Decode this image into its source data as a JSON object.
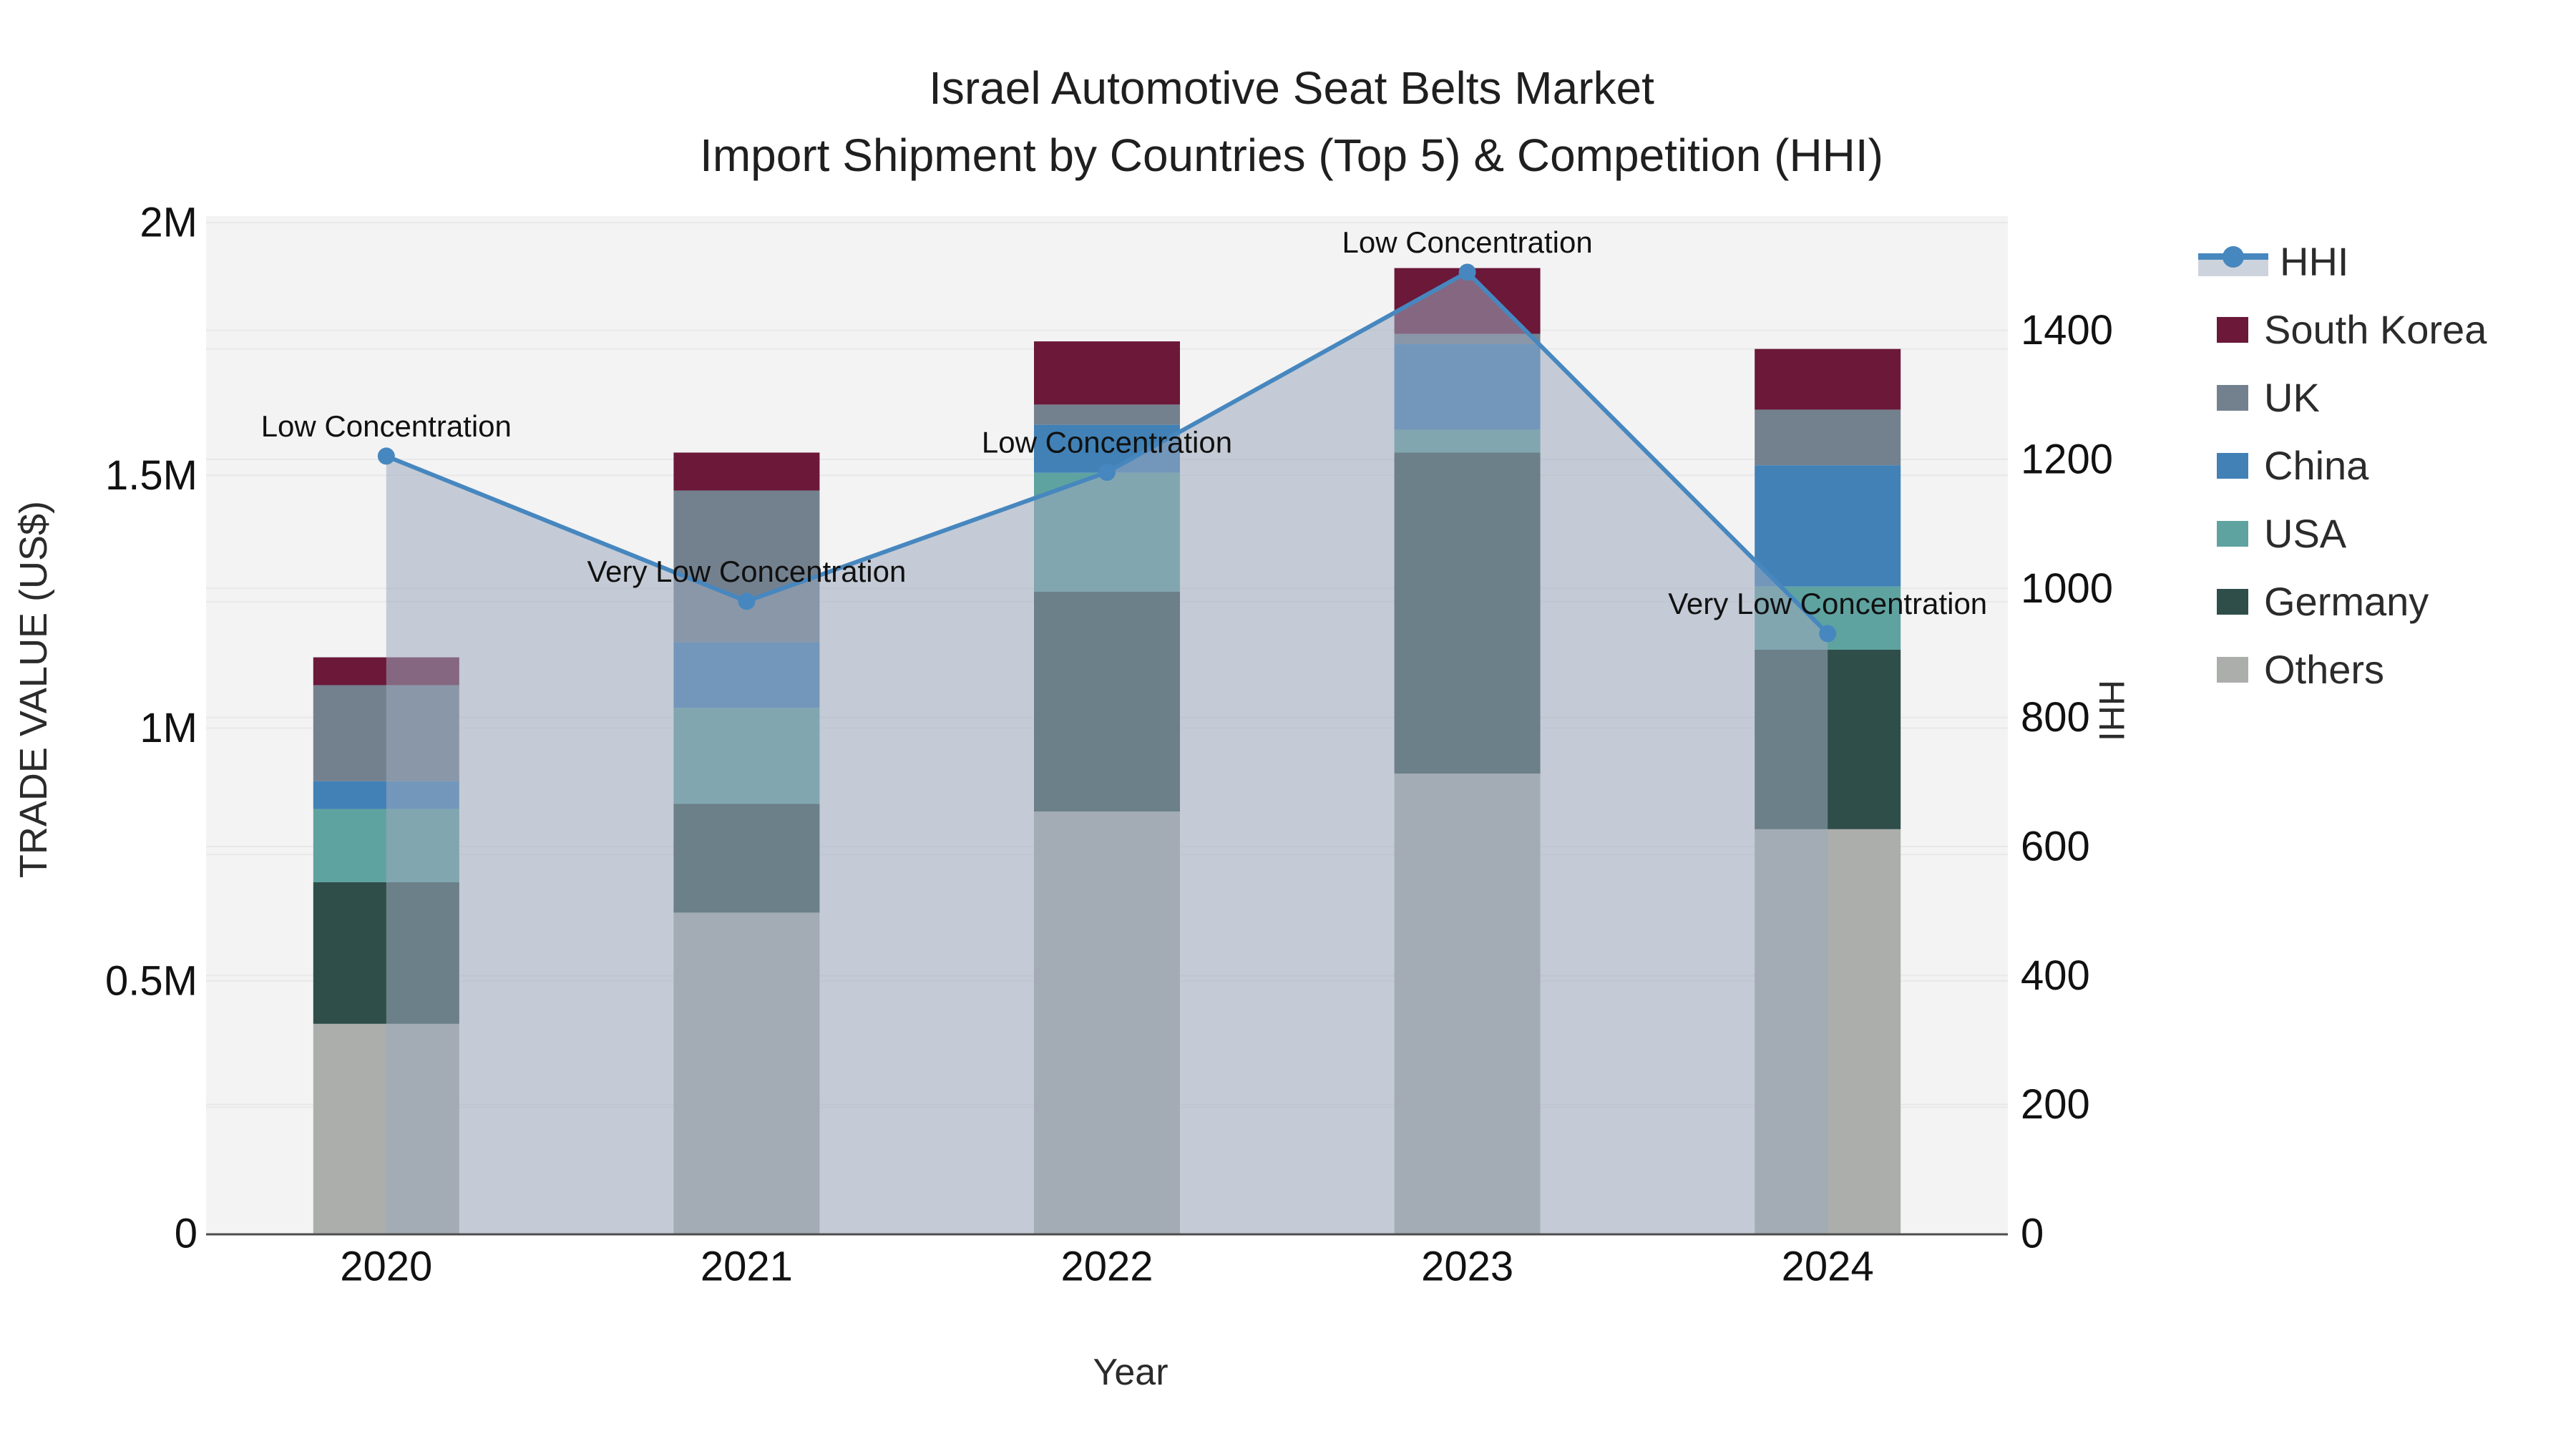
{
  "title": {
    "line1": "Israel Automotive Seat Belts Market",
    "line2": "Import Shipment by Countries (Top 5) & Competition (HHI)"
  },
  "axes": {
    "x": {
      "title": "Year",
      "tick_labels": [
        "2020",
        "2021",
        "2022",
        "2023",
        "2024"
      ]
    },
    "y_left": {
      "title": "TRADE VALUE (US$)",
      "tick_labels": [
        "0",
        "0.5M",
        "1M",
        "1.5M",
        "2M"
      ],
      "tick_values": [
        0,
        500000,
        1000000,
        1500000,
        2000000
      ],
      "range": [
        0,
        2012800
      ]
    },
    "y_right": {
      "title": "HHI",
      "tick_labels": [
        "0",
        "200",
        "400",
        "600",
        "800",
        "1000",
        "1200",
        "1400"
      ],
      "tick_values": [
        0,
        200,
        400,
        600,
        800,
        1000,
        1200,
        1400
      ],
      "range": [
        0,
        1577
      ]
    }
  },
  "legend": {
    "items": [
      {
        "id": "hhi",
        "label": "HHI",
        "type": "line",
        "color": "#4787BF"
      },
      {
        "id": "south-korea",
        "label": "South Korea",
        "type": "swatch",
        "color": "#6B1839"
      },
      {
        "id": "uk",
        "label": "UK",
        "type": "swatch",
        "color": "#73818F"
      },
      {
        "id": "china",
        "label": "China",
        "type": "swatch",
        "color": "#4181B6"
      },
      {
        "id": "usa",
        "label": "USA",
        "type": "swatch",
        "color": "#5FA3A0"
      },
      {
        "id": "germany",
        "label": "Germany",
        "type": "swatch",
        "color": "#2F4E49"
      },
      {
        "id": "others",
        "label": "Others",
        "type": "swatch",
        "color": "#ACAEAC"
      }
    ]
  },
  "chart_data": {
    "type": "bar",
    "stacked": true,
    "title": "Israel Automotive Seat Belts Market — Import Shipment by Countries (Top 5) & Competition (HHI)",
    "xlabel": "Year",
    "ylabel_left": "TRADE VALUE (US$)",
    "ylabel_right": "HHI",
    "categories": [
      "2020",
      "2021",
      "2022",
      "2023",
      "2024"
    ],
    "series": [
      {
        "name": "Others",
        "color": "#ACAEAC",
        "values": [
          415000,
          635000,
          835000,
          910000,
          800000
        ]
      },
      {
        "name": "Germany",
        "color": "#2F4E49",
        "values": [
          280000,
          215000,
          435000,
          635000,
          355000
        ]
      },
      {
        "name": "USA",
        "color": "#5FA3A0",
        "values": [
          145000,
          190000,
          235000,
          45000,
          125000
        ]
      },
      {
        "name": "China",
        "color": "#4181B6",
        "values": [
          55000,
          130000,
          95000,
          170000,
          240000
        ]
      },
      {
        "name": "UK",
        "color": "#73818F",
        "values": [
          190000,
          300000,
          40000,
          20000,
          110000
        ]
      },
      {
        "name": "South Korea",
        "color": "#6B1839",
        "values": [
          55000,
          75000,
          125000,
          130000,
          120000
        ]
      }
    ],
    "line_series": {
      "name": "HHI",
      "axis": "right",
      "color": "#4787BF",
      "fill_color": "rgba(157,169,189,0.55)",
      "values": [
        1205,
        980,
        1180,
        1490,
        930
      ],
      "annotations": [
        "Low Concentration",
        "Very Low Concentration",
        "Low Concentration",
        "Low Concentration",
        "Very Low Concentration"
      ]
    },
    "totals": [
      1140000,
      1545000,
      1765000,
      1910000,
      1750000
    ]
  },
  "colors": {
    "plot_bg": "#F3F3F3",
    "grid": "#E8E8E8",
    "axis_line": "#4D4D4D",
    "tick_text": "#111111",
    "annotation_text": "#111111"
  }
}
